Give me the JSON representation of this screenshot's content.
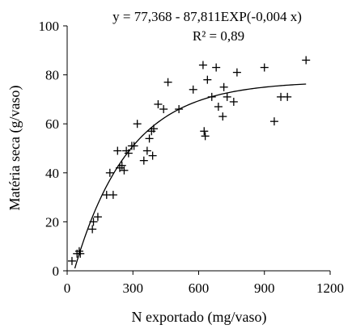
{
  "chart_data": {
    "type": "scatter",
    "xlabel": "N exportado (mg/vaso)",
    "ylabel": "Matéria seca (g/vaso)",
    "xlim": [
      0,
      1200
    ],
    "ylim": [
      0,
      100
    ],
    "x_ticks": [
      0,
      300,
      600,
      900,
      1200
    ],
    "y_ticks": [
      0,
      20,
      40,
      60,
      80,
      100
    ],
    "x_tick_labels": [
      "0",
      "300",
      "600",
      "900",
      "1200"
    ],
    "y_tick_labels": [
      "0",
      "20",
      "40",
      "60",
      "80",
      "100"
    ],
    "grid": false,
    "annotations": {
      "equation": "y = 77,368 - 87,811EXP(-0,004 x)",
      "r2": "R² = 0,89"
    },
    "marker": "+",
    "points": [
      [
        22,
        4
      ],
      [
        45,
        7
      ],
      [
        55,
        8
      ],
      [
        60,
        7
      ],
      [
        115,
        17
      ],
      [
        120,
        20
      ],
      [
        140,
        22
      ],
      [
        180,
        31
      ],
      [
        195,
        40
      ],
      [
        210,
        31
      ],
      [
        230,
        49
      ],
      [
        240,
        42
      ],
      [
        250,
        43
      ],
      [
        260,
        41
      ],
      [
        270,
        49
      ],
      [
        280,
        48
      ],
      [
        295,
        51
      ],
      [
        305,
        51
      ],
      [
        320,
        60
      ],
      [
        350,
        45
      ],
      [
        365,
        49
      ],
      [
        375,
        54
      ],
      [
        385,
        57
      ],
      [
        390,
        47
      ],
      [
        395,
        58
      ],
      [
        415,
        68
      ],
      [
        440,
        66
      ],
      [
        460,
        77
      ],
      [
        510,
        66
      ],
      [
        575,
        74
      ],
      [
        620,
        84
      ],
      [
        625,
        57
      ],
      [
        630,
        55
      ],
      [
        640,
        78
      ],
      [
        660,
        71
      ],
      [
        680,
        83
      ],
      [
        690,
        67
      ],
      [
        710,
        63
      ],
      [
        715,
        75
      ],
      [
        730,
        71
      ],
      [
        760,
        69
      ],
      [
        775,
        81
      ],
      [
        900,
        83
      ],
      [
        945,
        61
      ],
      [
        975,
        71
      ],
      [
        1005,
        71
      ],
      [
        1090,
        86
      ]
    ],
    "fit": {
      "a": 77.368,
      "b": 87.811,
      "k": 0.004,
      "x_start": 35,
      "x_end": 1090
    }
  }
}
